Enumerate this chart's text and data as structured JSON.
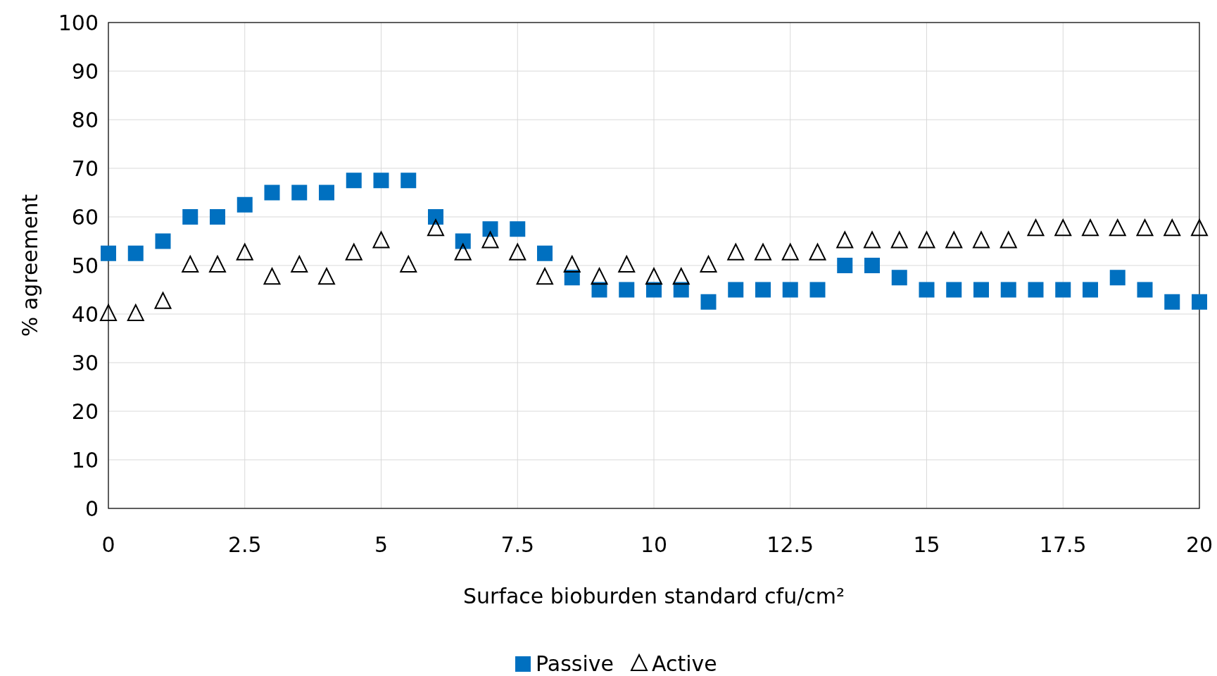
{
  "chart_data": {
    "type": "scatter",
    "xlabel": "Surface bioburden standard cfu/cm²",
    "ylabel": "% agreement",
    "x": [
      0,
      0.5,
      1,
      1.5,
      2,
      2.5,
      3,
      3.5,
      4,
      4.5,
      5,
      5.5,
      6,
      6.5,
      7,
      7.5,
      8,
      8.5,
      9,
      9.5,
      10,
      10.5,
      11,
      11.5,
      12,
      12.5,
      13,
      13.5,
      14,
      14.5,
      15,
      15.5,
      16,
      16.5,
      17,
      17.5,
      18,
      18.5,
      19,
      19.5,
      20
    ],
    "series": [
      {
        "name": "Passive",
        "color": "#0070c0",
        "marker": "square",
        "values": [
          52.5,
          52.5,
          55,
          60,
          60,
          62.5,
          65,
          65,
          65,
          67.5,
          67.5,
          67.5,
          60,
          55,
          57.5,
          57.5,
          52.5,
          47.5,
          45,
          45,
          45,
          45,
          42.5,
          45,
          45,
          45,
          45,
          50,
          50,
          47.5,
          45,
          45,
          45,
          45,
          45,
          45,
          45,
          47.5,
          45,
          42.5,
          42.5
        ]
      },
      {
        "name": "Active",
        "color": "#000000",
        "marker": "triangle",
        "values": [
          40,
          40,
          42.5,
          50,
          50,
          52.5,
          47.5,
          50,
          47.5,
          52.5,
          55,
          50,
          57.5,
          52.5,
          55,
          52.5,
          47.5,
          50,
          47.5,
          50,
          47.5,
          47.5,
          50,
          52.5,
          52.5,
          52.5,
          52.5,
          55,
          55,
          55,
          55,
          55,
          55,
          55,
          57.5,
          57.5,
          57.5,
          57.5,
          57.5,
          57.5,
          57.5
        ]
      }
    ],
    "xlim": [
      0,
      20
    ],
    "xticks": [
      0,
      2.5,
      5,
      7.5,
      10,
      12.5,
      15,
      17.5,
      20
    ],
    "ylim": [
      0,
      100
    ],
    "yticks": [
      0,
      10,
      20,
      30,
      40,
      50,
      60,
      70,
      80,
      90,
      100
    ],
    "grid": true,
    "legend": "bottom"
  }
}
